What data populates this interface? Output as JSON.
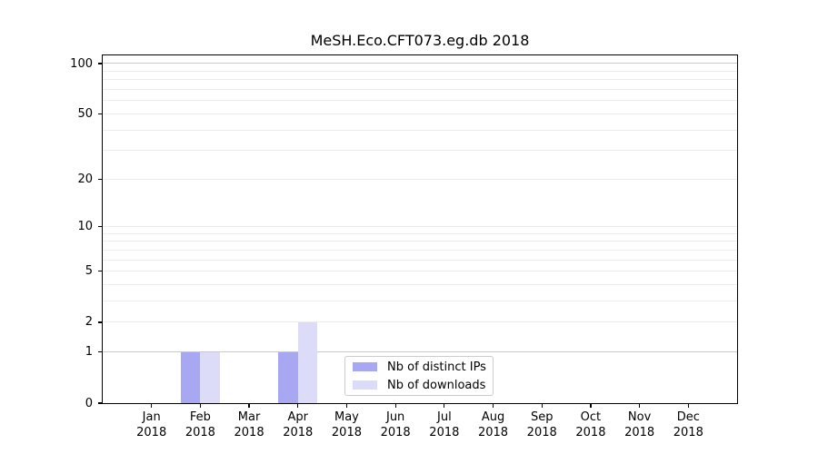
{
  "chart_data": {
    "type": "bar",
    "title": "MeSH.Eco.CFT073.eg.db 2018",
    "x_year": "2018",
    "categories": [
      "Jan",
      "Feb",
      "Mar",
      "Apr",
      "May",
      "Jun",
      "Jul",
      "Aug",
      "Sep",
      "Oct",
      "Nov",
      "Dec"
    ],
    "series": [
      {
        "name": "Nb of distinct IPs",
        "color": "#a8a8f2",
        "values": [
          0,
          1,
          0,
          1,
          0,
          0,
          0,
          0,
          0,
          0,
          0,
          0
        ]
      },
      {
        "name": "Nb of downloads",
        "color": "#dcdcf8",
        "values": [
          0,
          1,
          0,
          2,
          0,
          0,
          0,
          0,
          0,
          0,
          0,
          0
        ]
      }
    ],
    "y_ticks": [
      0,
      1,
      2,
      5,
      10,
      20,
      50,
      100
    ],
    "y_scale": "log1p",
    "ylim": [
      0,
      112
    ],
    "xlabel": "",
    "ylabel": "",
    "grid": "horizontal",
    "legend_position": "lower-center"
  },
  "colors": {
    "background": "#ffffff",
    "grid_minor": "#ececec",
    "grid_major": "#c8c8c8",
    "spine": "#000000",
    "legend_border": "#cccccc",
    "text": "#000000"
  }
}
